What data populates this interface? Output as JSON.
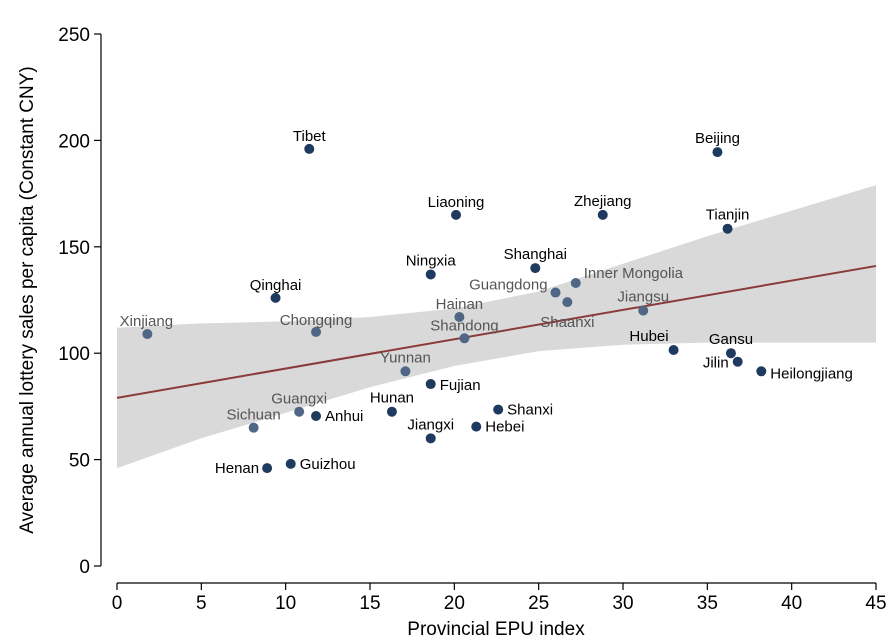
{
  "chart_data": {
    "type": "scatter",
    "title": "",
    "xlabel": "Provincial EPU index",
    "ylabel": "Average annual lottery sales per capita (Constant CNY)",
    "xlim": [
      0,
      45
    ],
    "ylim": [
      0,
      250
    ],
    "xticks": [
      "0",
      "5",
      "10",
      "15",
      "20",
      "25",
      "30",
      "35",
      "40",
      "45"
    ],
    "yticks": [
      "0",
      "50",
      "100",
      "150",
      "200",
      "250"
    ],
    "grid": false,
    "legend": "none",
    "colors": {
      "point_dark": "#1f3a5f",
      "point_light": "#4f6784",
      "label_dark": "#000000",
      "label_light": "#555555",
      "fit_line": "#8b3a3a",
      "ci_band": "#d9d9d9"
    },
    "fit_line": {
      "x": [
        0,
        45
      ],
      "y": [
        79,
        141
      ]
    },
    "confidence_band": {
      "x": [
        0,
        5,
        10,
        15,
        20,
        25,
        30,
        35,
        40,
        45
      ],
      "upper": [
        112,
        114,
        115,
        117,
        121,
        129,
        142,
        155,
        167,
        179
      ],
      "lower": [
        46,
        60,
        72,
        84,
        94,
        101,
        104,
        105,
        105,
        105
      ]
    },
    "points": [
      {
        "name": "Xinjiang",
        "x": 1.8,
        "y": 109,
        "tone": "light"
      },
      {
        "name": "Tibet",
        "x": 11.4,
        "y": 196,
        "tone": "dark"
      },
      {
        "name": "Qinghai",
        "x": 9.4,
        "y": 126,
        "tone": "dark"
      },
      {
        "name": "Chongqing",
        "x": 11.8,
        "y": 110,
        "tone": "light"
      },
      {
        "name": "Guangxi",
        "x": 10.8,
        "y": 72.5,
        "tone": "light"
      },
      {
        "name": "Sichuan",
        "x": 8.1,
        "y": 65,
        "tone": "light"
      },
      {
        "name": "Anhui",
        "x": 11.8,
        "y": 70.5,
        "tone": "dark"
      },
      {
        "name": "Henan",
        "x": 8.9,
        "y": 46,
        "tone": "dark"
      },
      {
        "name": "Guizhou",
        "x": 10.3,
        "y": 48,
        "tone": "dark"
      },
      {
        "name": "Yunnan",
        "x": 17.1,
        "y": 91.5,
        "tone": "light"
      },
      {
        "name": "Hunan",
        "x": 16.3,
        "y": 72.5,
        "tone": "dark"
      },
      {
        "name": "Fujian",
        "x": 18.6,
        "y": 85.5,
        "tone": "dark"
      },
      {
        "name": "Jiangxi",
        "x": 18.6,
        "y": 60,
        "tone": "dark"
      },
      {
        "name": "Ningxia",
        "x": 18.6,
        "y": 137,
        "tone": "dark"
      },
      {
        "name": "Liaoning",
        "x": 20.1,
        "y": 165,
        "tone": "dark"
      },
      {
        "name": "Hainan",
        "x": 20.3,
        "y": 117,
        "tone": "light"
      },
      {
        "name": "Shandong",
        "x": 20.6,
        "y": 107,
        "tone": "light"
      },
      {
        "name": "Hebei",
        "x": 21.3,
        "y": 65.5,
        "tone": "dark"
      },
      {
        "name": "Shanxi",
        "x": 22.6,
        "y": 73.5,
        "tone": "dark"
      },
      {
        "name": "Shanghai",
        "x": 24.8,
        "y": 140,
        "tone": "dark"
      },
      {
        "name": "Guangdong",
        "x": 26.0,
        "y": 128.5,
        "tone": "light"
      },
      {
        "name": "Shaanxi",
        "x": 26.7,
        "y": 124,
        "tone": "light"
      },
      {
        "name": "Inner Mongolia",
        "x": 27.2,
        "y": 133,
        "tone": "light"
      },
      {
        "name": "Zhejiang",
        "x": 28.8,
        "y": 165,
        "tone": "dark"
      },
      {
        "name": "Jiangsu",
        "x": 31.2,
        "y": 120,
        "tone": "light"
      },
      {
        "name": "Hubei",
        "x": 33.0,
        "y": 101.5,
        "tone": "dark"
      },
      {
        "name": "Beijing",
        "x": 35.6,
        "y": 194.5,
        "tone": "dark"
      },
      {
        "name": "Tianjin",
        "x": 36.2,
        "y": 158.5,
        "tone": "dark"
      },
      {
        "name": "Gansu",
        "x": 36.4,
        "y": 100,
        "tone": "dark"
      },
      {
        "name": "Jilin",
        "x": 36.8,
        "y": 96,
        "tone": "dark"
      },
      {
        "name": "Heilongjiang",
        "x": 38.2,
        "y": 91.5,
        "tone": "dark"
      }
    ]
  }
}
